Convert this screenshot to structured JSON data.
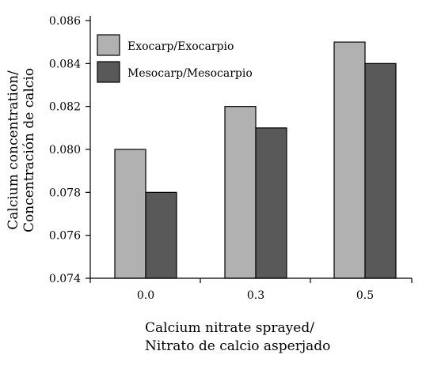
{
  "chart_data": {
    "type": "bar",
    "categories": [
      "0.0",
      "0.3",
      "0.5"
    ],
    "series": [
      {
        "name": "Exocarp/Exocarpio",
        "values": [
          0.08,
          0.082,
          0.085
        ],
        "color": "#b1b1b1"
      },
      {
        "name": "Mesocarp/Mesocarpio",
        "values": [
          0.078,
          0.081,
          0.084
        ],
        "color": "#595959"
      }
    ],
    "ylim": [
      0.074,
      0.086
    ],
    "yticks": [
      "0.074",
      "0.076",
      "0.078",
      "0.080",
      "0.082",
      "0.084",
      "0.086"
    ],
    "ylabel_lines": [
      "Calcium concentration/",
      "Concentración de calcio"
    ],
    "xlabel_lines": [
      "Calcium nitrate sprayed/",
      "Nitrato de calcio asperjado"
    ],
    "legend_position": "top-left",
    "grid": false
  }
}
